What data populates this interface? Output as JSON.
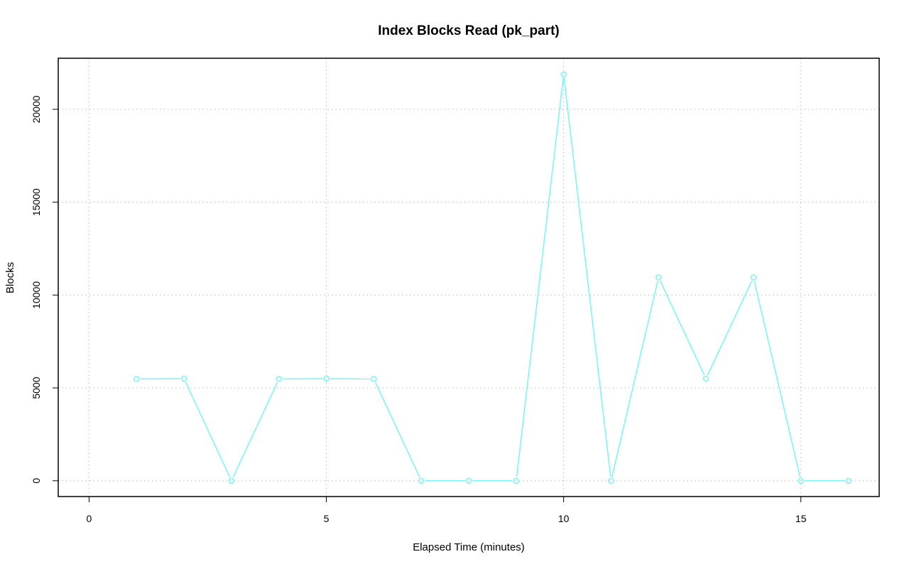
{
  "chart_data": {
    "type": "line",
    "title": "Index Blocks Read (pk_part)",
    "xlabel": "Elapsed Time (minutes)",
    "ylabel": "Blocks",
    "xlim": [
      -0.65,
      16.65
    ],
    "ylim": [
      -850,
      22750
    ],
    "xticks": [
      0,
      5,
      10,
      15
    ],
    "yticks": [
      0,
      5000,
      10000,
      15000,
      20000
    ],
    "grid": true,
    "legend": "none",
    "series": [
      {
        "color": "#7ff5f5",
        "marker": "open-circle",
        "x": [
          1,
          2,
          3,
          4,
          5,
          6,
          7,
          8,
          9,
          10,
          11,
          12,
          13,
          14,
          15,
          16
        ],
        "y": [
          5480,
          5500,
          0,
          5480,
          5500,
          5480,
          0,
          0,
          0,
          21880,
          0,
          10950,
          5500,
          10950,
          0,
          0
        ]
      }
    ]
  }
}
